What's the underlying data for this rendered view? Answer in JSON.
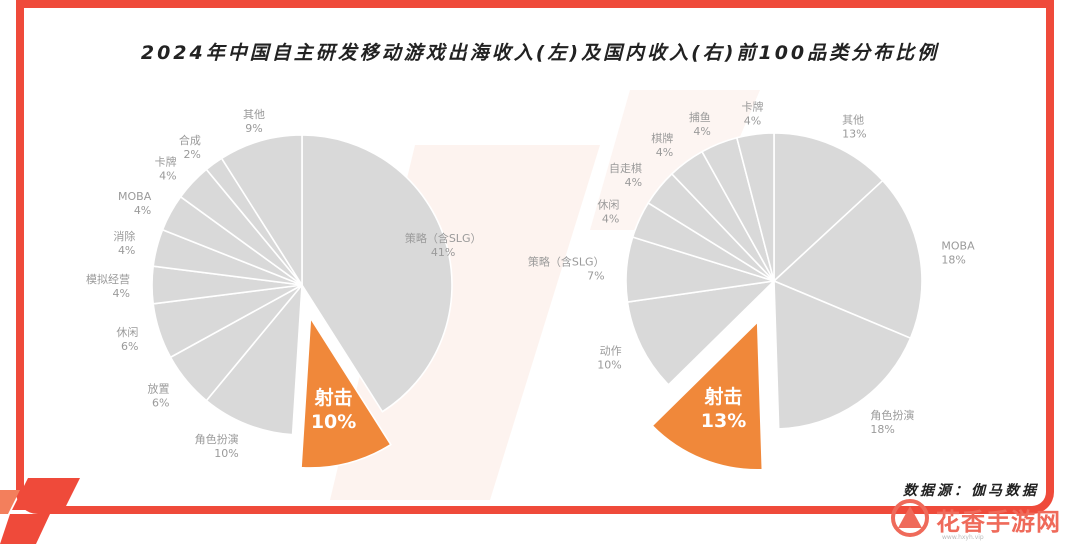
{
  "title": "2024年中国自主研发移动游戏出海收入(左)及国内收入(右)前100品类分布比例",
  "source": "数据源：伽马数据",
  "watermark": {
    "text": "花香手游网",
    "sub": "www.hxyh.vip"
  },
  "colors": {
    "accent": "#f0883a",
    "slice": "#d9d9d9",
    "frame": "#ef4a3a"
  },
  "chart_data": [
    {
      "type": "pie",
      "title": "出海收入(左)",
      "slices": [
        {
          "label": "策略（含SLG）",
          "value": 41
        },
        {
          "label": "射击",
          "value": 10,
          "highlight": true
        },
        {
          "label": "角色扮演",
          "value": 10
        },
        {
          "label": "放置",
          "value": 6
        },
        {
          "label": "休闲",
          "value": 6
        },
        {
          "label": "模拟经营",
          "value": 4
        },
        {
          "label": "消除",
          "value": 4
        },
        {
          "label": "MOBA",
          "value": 4
        },
        {
          "label": "卡牌",
          "value": 4
        },
        {
          "label": "合成",
          "value": 2
        },
        {
          "label": "其他",
          "value": 9
        }
      ]
    },
    {
      "type": "pie",
      "title": "国内收入(右)",
      "slices": [
        {
          "label": "其他",
          "value": 13
        },
        {
          "label": "MOBA",
          "value": 18
        },
        {
          "label": "角色扮演",
          "value": 18
        },
        {
          "label": "射击",
          "value": 13,
          "highlight": true
        },
        {
          "label": "动作",
          "value": 10
        },
        {
          "label": "策略（含SLG）",
          "value": 7
        },
        {
          "label": "休闲",
          "value": 4
        },
        {
          "label": "自走棋",
          "value": 4
        },
        {
          "label": "棋牌",
          "value": 4
        },
        {
          "label": "捕鱼",
          "value": 4
        },
        {
          "label": "卡牌",
          "value": 4
        }
      ]
    }
  ]
}
